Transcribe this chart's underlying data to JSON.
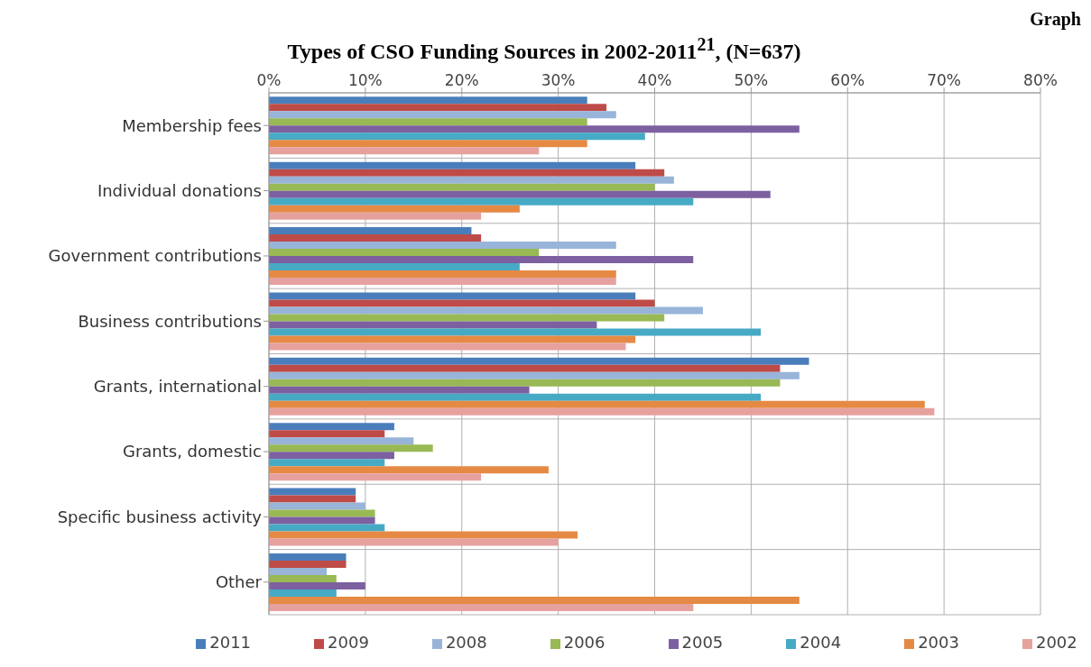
{
  "chart_data": {
    "type": "bar",
    "orientation": "horizontal",
    "title": "Types of CSO Funding Sources in 2002-2011$^{21}$, (N=637)",
    "annotations": [
      "Graph"
    ],
    "categories": [
      "Membership fees",
      "Individual donations",
      "Government contributions",
      "Business contributions",
      "Grants, international",
      "Grants, domestic",
      "Specific business activity",
      "Other"
    ],
    "series": [
      {
        "name": "2011",
        "color": "#4a7ebb",
        "values": [
          33,
          38,
          21,
          38,
          56,
          13,
          9,
          8
        ]
      },
      {
        "name": "2009",
        "color": "#be4b48",
        "values": [
          35,
          41,
          22,
          40,
          53,
          12,
          9,
          8
        ]
      },
      {
        "name": "2008",
        "color": "#98b4d9",
        "values": [
          36,
          42,
          36,
          45,
          55,
          15,
          10,
          6
        ]
      },
      {
        "name": "2006",
        "color": "#98b954",
        "values": [
          33,
          40,
          28,
          41,
          53,
          17,
          11,
          7
        ]
      },
      {
        "name": "2005",
        "color": "#7d60a0",
        "values": [
          55,
          52,
          44,
          34,
          27,
          13,
          11,
          10
        ]
      },
      {
        "name": "2004",
        "color": "#46aac5",
        "values": [
          39,
          44,
          26,
          51,
          51,
          12,
          12,
          7
        ]
      },
      {
        "name": "2003",
        "color": "#e58a44",
        "values": [
          33,
          26,
          36,
          38,
          68,
          29,
          32,
          55
        ]
      },
      {
        "name": "2002",
        "color": "#e6a19f",
        "values": [
          28,
          22,
          36,
          37,
          69,
          22,
          30,
          44
        ]
      }
    ],
    "xlim": [
      0,
      80
    ],
    "xticks": [
      {
        "value": 0,
        "label": "0%"
      },
      {
        "value": 10,
        "label": "10%"
      },
      {
        "value": 20,
        "label": "20%"
      },
      {
        "value": 30,
        "label": "30%"
      },
      {
        "value": 40,
        "label": "40%"
      },
      {
        "value": 50,
        "label": "50%"
      },
      {
        "value": 60,
        "label": "60%"
      },
      {
        "value": 70,
        "label": "70%"
      },
      {
        "value": 80,
        "label": "80%"
      }
    ],
    "grid": true,
    "legend": "bottom"
  }
}
